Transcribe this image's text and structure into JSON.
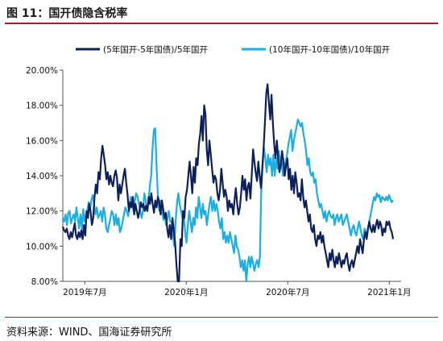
{
  "header": {
    "title": "图 11：国开债隐含税率"
  },
  "footer": {
    "source": "资料来源：WIND、国海证券研究所"
  },
  "colors": {
    "series1": "#0b1f5c",
    "series2": "#19aee6",
    "accent": "#c8102e"
  },
  "chart_data": {
    "type": "line",
    "title": "",
    "xlabel": "",
    "ylabel": "",
    "ylim": [
      8,
      20
    ],
    "yticks": [
      "8.00%",
      "10.00%",
      "12.00%",
      "14.00%",
      "16.00%",
      "18.00%",
      "20.00%"
    ],
    "xticks": [
      "2019年7月",
      "2020年1月",
      "2020年7月",
      "2021年1月"
    ],
    "legend": "top",
    "grid": false,
    "series": [
      {
        "name": "(5年国开-5年国债)/5年国开",
        "color": "#0b1f5c",
        "values": [
          11.1,
          10.9,
          10.8,
          11.0,
          10.6,
          10.4,
          10.8,
          10.5,
          10.9,
          11.3,
          10.6,
          10.4,
          10.8,
          10.5,
          10.9,
          10.4,
          11.2,
          10.6,
          12.0,
          11.6,
          12.4,
          12.0,
          11.2,
          11.6,
          12.8,
          13.5,
          13.0,
          14.2,
          13.8,
          15.0,
          15.7,
          15.2,
          14.6,
          13.8,
          14.2,
          13.5,
          14.0,
          13.6,
          13.4,
          14.0,
          14.3,
          13.9,
          12.6,
          13.5,
          13.0,
          13.5,
          14.0,
          14.4,
          13.6,
          12.9,
          12.0,
          12.5,
          12.2,
          12.8,
          11.8,
          12.4,
          12.0,
          11.6,
          12.0,
          12.5,
          12.2,
          12.4,
          12.0,
          12.3,
          12.0,
          12.8,
          12.4,
          13.0,
          12.4,
          11.9,
          12.6,
          12.2,
          12.8,
          12.5,
          11.8,
          12.6,
          12.1,
          11.6,
          11.9,
          11.0,
          10.5,
          11.2,
          10.4,
          11.6,
          10.9,
          10.2,
          9.0,
          8.0,
          8.0,
          10.4,
          10.0,
          12.0,
          11.6,
          12.8,
          13.2,
          14.0,
          14.8,
          14.0,
          13.0,
          14.5,
          13.6,
          15.0,
          14.6,
          15.8,
          16.4,
          17.4,
          16.0,
          18.0,
          17.5,
          15.4,
          14.6,
          16.0,
          15.2,
          14.4,
          13.6,
          14.0,
          13.8,
          13.0,
          12.6,
          13.2,
          14.4,
          13.6,
          12.8,
          13.2,
          12.8,
          12.0,
          12.6,
          12.2,
          12.4,
          11.8,
          12.6,
          13.3,
          12.4,
          11.8,
          12.2,
          13.0,
          14.0,
          13.2,
          13.8,
          12.6,
          13.4,
          13.6,
          12.7,
          14.0,
          15.5,
          14.8,
          14.2,
          13.7,
          14.8,
          14.0,
          13.3,
          14.4,
          15.6,
          17.0,
          18.7,
          19.2,
          18.2,
          17.2,
          18.6,
          17.0,
          15.8,
          15.0,
          16.0,
          15.0,
          14.2,
          14.6,
          15.4,
          14.8,
          14.0,
          14.6,
          15.0,
          13.8,
          14.4,
          13.2,
          14.0,
          13.0,
          14.2,
          13.6,
          12.8,
          13.0,
          12.6,
          13.8,
          12.8,
          12.2,
          12.6,
          12.0,
          11.4,
          11.8,
          11.0,
          10.8,
          11.2,
          10.4,
          10.0,
          10.6,
          10.4,
          10.8,
          10.2,
          10.6,
          10.0,
          9.6,
          9.2,
          8.8,
          9.6,
          9.2,
          9.8,
          9.2,
          8.8,
          9.4,
          9.0,
          9.6,
          9.2,
          8.8,
          9.2,
          9.0,
          9.4,
          9.6,
          9.0,
          8.6,
          9.0,
          9.2,
          8.8,
          9.2,
          9.6,
          10.0,
          9.6,
          10.4,
          10.0,
          9.6,
          10.4,
          10.8,
          10.4,
          11.0,
          11.4,
          11.0,
          10.8,
          11.2,
          10.8,
          11.2,
          11.5,
          11.0,
          11.4,
          11.2,
          10.6,
          11.0,
          10.8,
          11.4,
          11.2,
          11.4,
          11.0,
          10.8,
          10.4
        ]
      },
      {
        "name": "(10年国开-10年国债)/10年国开",
        "color": "#19aee6",
        "values": [
          11.6,
          11.4,
          11.8,
          11.2,
          11.9,
          12.0,
          11.3,
          11.6,
          11.8,
          11.4,
          12.2,
          11.6,
          11.0,
          11.8,
          11.0,
          12.1,
          11.4,
          11.8,
          12.0,
          12.5,
          12.1,
          12.6,
          12.9,
          12.4,
          11.8,
          12.2,
          11.6,
          11.8,
          12.0,
          11.4,
          12.2,
          11.8,
          11.0,
          10.8,
          11.2,
          11.6,
          12.0,
          11.8,
          11.2,
          11.8,
          11.2,
          11.6,
          10.8,
          11.0,
          11.4,
          11.8,
          12.2,
          12.0,
          11.7,
          12.2,
          12.8,
          12.6,
          12.0,
          12.6,
          13.0,
          12.8,
          12.4,
          12.0,
          11.6,
          12.0,
          13.0,
          12.6,
          12.0,
          12.4,
          13.4,
          14.0,
          15.6,
          16.6,
          16.7,
          14.5,
          12.8,
          12.0,
          12.6,
          12.0,
          11.5,
          11.8,
          11.2,
          11.6,
          12.0,
          11.4,
          11.4,
          10.6,
          10.0,
          11.4,
          12.4,
          13.0,
          12.4,
          12.0,
          11.6,
          11.8,
          10.8,
          10.2,
          11.2,
          12.0,
          11.4,
          10.8,
          11.6,
          11.2,
          12.2,
          11.6,
          12.8,
          12.2,
          11.6,
          12.4,
          11.8,
          12.0,
          11.2,
          11.8,
          12.4,
          12.8,
          12.0,
          12.6,
          12.0,
          12.4,
          12.0,
          11.4,
          11.0,
          11.6,
          10.4,
          10.8,
          10.2,
          10.6,
          10.2,
          10.8,
          10.4,
          10.0,
          9.6,
          10.6,
          10.0,
          9.8,
          9.4,
          8.8,
          9.2,
          8.6,
          9.2,
          8.0,
          9.0,
          9.4,
          8.8,
          9.4,
          9.0,
          8.6,
          9.0,
          9.2,
          8.8,
          9.4,
          13.0,
          14.6,
          15.6,
          15.0,
          14.2,
          15.2,
          14.6,
          15.0,
          14.0,
          15.2,
          14.0,
          15.0,
          14.4,
          15.4,
          14.6,
          14.8,
          14.0,
          14.6,
          14.8,
          15.2,
          15.8,
          16.2,
          16.6,
          15.4,
          16.0,
          16.4,
          16.8,
          17.2,
          17.0,
          16.8,
          17.0,
          16.4,
          16.0,
          15.4,
          14.6,
          15.0,
          14.2,
          14.0,
          14.2,
          13.6,
          13.8,
          13.0,
          12.6,
          12.2,
          12.4,
          12.0,
          11.6,
          12.0,
          11.4,
          11.8,
          12.0,
          11.7,
          11.6,
          11.8,
          11.2,
          11.6,
          11.8,
          11.4,
          11.6,
          11.8,
          11.2,
          11.4,
          11.6,
          11.8,
          11.4,
          11.0,
          10.6,
          11.0,
          11.2,
          10.8,
          10.6,
          11.0,
          11.4,
          11.0,
          10.6,
          10.4,
          11.0,
          10.8,
          10.6,
          11.2,
          11.6,
          12.0,
          12.4,
          12.8,
          12.6,
          13.0,
          12.8,
          12.9,
          12.5,
          12.8,
          12.7,
          12.6,
          12.8,
          12.6,
          12.9,
          12.7,
          12.5,
          12.6
        ]
      }
    ]
  }
}
